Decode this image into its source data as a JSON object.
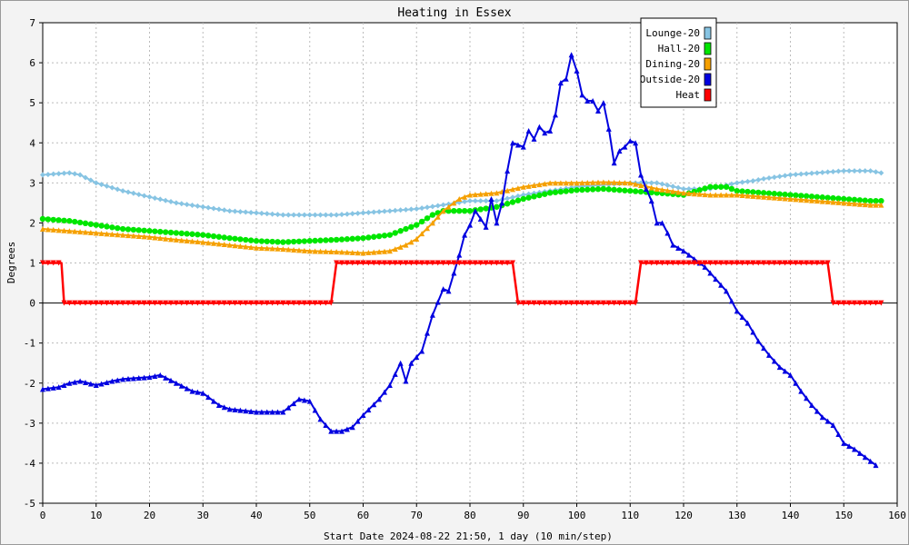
{
  "chart_data": {
    "type": "line",
    "title": "Heating in Essex",
    "xlabel": "Start Date 2024-08-22 21:50, 1 day (10 min/step)",
    "ylabel": "Degrees",
    "xlim": [
      0,
      160
    ],
    "ylim": [
      -5,
      7
    ],
    "x_ticks": [
      0,
      10,
      20,
      30,
      40,
      50,
      60,
      70,
      80,
      90,
      100,
      110,
      120,
      130,
      140,
      150,
      160
    ],
    "y_ticks": [
      -5,
      -4,
      -3,
      -2,
      -1,
      0,
      1,
      2,
      3,
      4,
      5,
      6,
      7
    ],
    "grid": true,
    "legend_position": "top-right",
    "series": [
      {
        "name": "Lounge-20",
        "color": "#87c4e3",
        "marker": "diamond",
        "points": [
          [
            0,
            3.2
          ],
          [
            5,
            3.25
          ],
          [
            7,
            3.2
          ],
          [
            10,
            3.0
          ],
          [
            15,
            2.8
          ],
          [
            20,
            2.65
          ],
          [
            25,
            2.5
          ],
          [
            30,
            2.4
          ],
          [
            35,
            2.3
          ],
          [
            40,
            2.25
          ],
          [
            45,
            2.2
          ],
          [
            50,
            2.2
          ],
          [
            55,
            2.2
          ],
          [
            60,
            2.25
          ],
          [
            65,
            2.3
          ],
          [
            70,
            2.35
          ],
          [
            75,
            2.45
          ],
          [
            80,
            2.55
          ],
          [
            85,
            2.55
          ],
          [
            90,
            2.7
          ],
          [
            95,
            2.8
          ],
          [
            100,
            2.9
          ],
          [
            105,
            2.95
          ],
          [
            110,
            3.0
          ],
          [
            115,
            3.0
          ],
          [
            120,
            2.85
          ],
          [
            125,
            2.85
          ],
          [
            130,
            3.0
          ],
          [
            133,
            3.05
          ],
          [
            135,
            3.1
          ],
          [
            140,
            3.2
          ],
          [
            145,
            3.25
          ],
          [
            150,
            3.3
          ],
          [
            155,
            3.3
          ],
          [
            157,
            3.25
          ]
        ]
      },
      {
        "name": "Hall-20",
        "color": "#00e600",
        "marker": "circle",
        "points": [
          [
            0,
            2.1
          ],
          [
            5,
            2.05
          ],
          [
            10,
            1.95
          ],
          [
            15,
            1.85
          ],
          [
            20,
            1.8
          ],
          [
            25,
            1.75
          ],
          [
            30,
            1.7
          ],
          [
            35,
            1.62
          ],
          [
            40,
            1.55
          ],
          [
            45,
            1.52
          ],
          [
            50,
            1.55
          ],
          [
            55,
            1.58
          ],
          [
            60,
            1.62
          ],
          [
            65,
            1.7
          ],
          [
            70,
            1.95
          ],
          [
            73,
            2.2
          ],
          [
            75,
            2.3
          ],
          [
            80,
            2.3
          ],
          [
            85,
            2.4
          ],
          [
            90,
            2.6
          ],
          [
            95,
            2.75
          ],
          [
            100,
            2.82
          ],
          [
            105,
            2.85
          ],
          [
            110,
            2.8
          ],
          [
            115,
            2.75
          ],
          [
            120,
            2.7
          ],
          [
            125,
            2.9
          ],
          [
            128,
            2.9
          ],
          [
            130,
            2.8
          ],
          [
            135,
            2.75
          ],
          [
            140,
            2.7
          ],
          [
            145,
            2.65
          ],
          [
            150,
            2.6
          ],
          [
            155,
            2.55
          ],
          [
            157,
            2.55
          ]
        ]
      },
      {
        "name": "Dining-20",
        "color": "#f5a000",
        "marker": "triangle",
        "points": [
          [
            0,
            1.85
          ],
          [
            5,
            1.8
          ],
          [
            10,
            1.75
          ],
          [
            15,
            1.7
          ],
          [
            20,
            1.65
          ],
          [
            25,
            1.58
          ],
          [
            30,
            1.52
          ],
          [
            35,
            1.45
          ],
          [
            40,
            1.38
          ],
          [
            45,
            1.35
          ],
          [
            50,
            1.3
          ],
          [
            55,
            1.28
          ],
          [
            60,
            1.25
          ],
          [
            65,
            1.3
          ],
          [
            68,
            1.45
          ],
          [
            70,
            1.6
          ],
          [
            73,
            2.0
          ],
          [
            75,
            2.3
          ],
          [
            78,
            2.6
          ],
          [
            80,
            2.7
          ],
          [
            85,
            2.75
          ],
          [
            90,
            2.9
          ],
          [
            95,
            3.0
          ],
          [
            100,
            3.0
          ],
          [
            105,
            3.02
          ],
          [
            110,
            3.0
          ],
          [
            115,
            2.85
          ],
          [
            120,
            2.75
          ],
          [
            125,
            2.7
          ],
          [
            130,
            2.7
          ],
          [
            135,
            2.65
          ],
          [
            140,
            2.6
          ],
          [
            145,
            2.55
          ],
          [
            150,
            2.5
          ],
          [
            155,
            2.45
          ],
          [
            157,
            2.45
          ]
        ]
      },
      {
        "name": "Outside-20",
        "color": "#0000e0",
        "marker": "triangle",
        "points": [
          [
            0,
            -2.15
          ],
          [
            3,
            -2.1
          ],
          [
            5,
            -2.0
          ],
          [
            7,
            -1.95
          ],
          [
            10,
            -2.05
          ],
          [
            13,
            -1.95
          ],
          [
            15,
            -1.9
          ],
          [
            20,
            -1.85
          ],
          [
            22,
            -1.8
          ],
          [
            25,
            -2.0
          ],
          [
            28,
            -2.2
          ],
          [
            30,
            -2.25
          ],
          [
            33,
            -2.55
          ],
          [
            35,
            -2.65
          ],
          [
            40,
            -2.72
          ],
          [
            45,
            -2.72
          ],
          [
            48,
            -2.4
          ],
          [
            50,
            -2.45
          ],
          [
            52,
            -2.9
          ],
          [
            54,
            -3.2
          ],
          [
            56,
            -3.2
          ],
          [
            58,
            -3.1
          ],
          [
            60,
            -2.8
          ],
          [
            63,
            -2.4
          ],
          [
            65,
            -2.05
          ],
          [
            67,
            -1.5
          ],
          [
            68,
            -1.95
          ],
          [
            69,
            -1.5
          ],
          [
            71,
            -1.2
          ],
          [
            73,
            -0.3
          ],
          [
            75,
            0.35
          ],
          [
            76,
            0.3
          ],
          [
            78,
            1.2
          ],
          [
            79,
            1.7
          ],
          [
            80,
            1.95
          ],
          [
            81,
            2.3
          ],
          [
            82,
            2.1
          ],
          [
            83,
            1.9
          ],
          [
            84,
            2.6
          ],
          [
            85,
            2.0
          ],
          [
            86,
            2.5
          ],
          [
            87,
            3.3
          ],
          [
            88,
            4.0
          ],
          [
            90,
            3.9
          ],
          [
            91,
            4.3
          ],
          [
            92,
            4.1
          ],
          [
            93,
            4.4
          ],
          [
            94,
            4.25
          ],
          [
            95,
            4.3
          ],
          [
            96,
            4.7
          ],
          [
            97,
            5.5
          ],
          [
            98,
            5.6
          ],
          [
            99,
            6.2
          ],
          [
            100,
            5.8
          ],
          [
            101,
            5.2
          ],
          [
            102,
            5.05
          ],
          [
            103,
            5.05
          ],
          [
            104,
            4.8
          ],
          [
            105,
            5.0
          ],
          [
            106,
            4.35
          ],
          [
            107,
            3.5
          ],
          [
            108,
            3.8
          ],
          [
            109,
            3.9
          ],
          [
            110,
            4.05
          ],
          [
            111,
            4.0
          ],
          [
            112,
            3.2
          ],
          [
            113,
            2.85
          ],
          [
            114,
            2.55
          ],
          [
            115,
            2.0
          ],
          [
            116,
            2.0
          ],
          [
            117,
            1.75
          ],
          [
            118,
            1.45
          ],
          [
            120,
            1.3
          ],
          [
            122,
            1.1
          ],
          [
            124,
            0.9
          ],
          [
            126,
            0.6
          ],
          [
            128,
            0.3
          ],
          [
            130,
            -0.2
          ],
          [
            132,
            -0.5
          ],
          [
            134,
            -0.95
          ],
          [
            136,
            -1.3
          ],
          [
            138,
            -1.6
          ],
          [
            140,
            -1.8
          ],
          [
            142,
            -2.2
          ],
          [
            144,
            -2.55
          ],
          [
            146,
            -2.85
          ],
          [
            148,
            -3.05
          ],
          [
            150,
            -3.5
          ],
          [
            152,
            -3.65
          ],
          [
            154,
            -3.85
          ],
          [
            156,
            -4.05
          ]
        ]
      },
      {
        "name": "Heat",
        "color": "#ff0000",
        "marker": "triangle-down",
        "points": [
          [
            0,
            1
          ],
          [
            3.5,
            1
          ],
          [
            4,
            0
          ],
          [
            54,
            0
          ],
          [
            55,
            1
          ],
          [
            88,
            1
          ],
          [
            89,
            0
          ],
          [
            111,
            0
          ],
          [
            112,
            1
          ],
          [
            147,
            1
          ],
          [
            148,
            0
          ],
          [
            157,
            0
          ]
        ]
      }
    ]
  }
}
